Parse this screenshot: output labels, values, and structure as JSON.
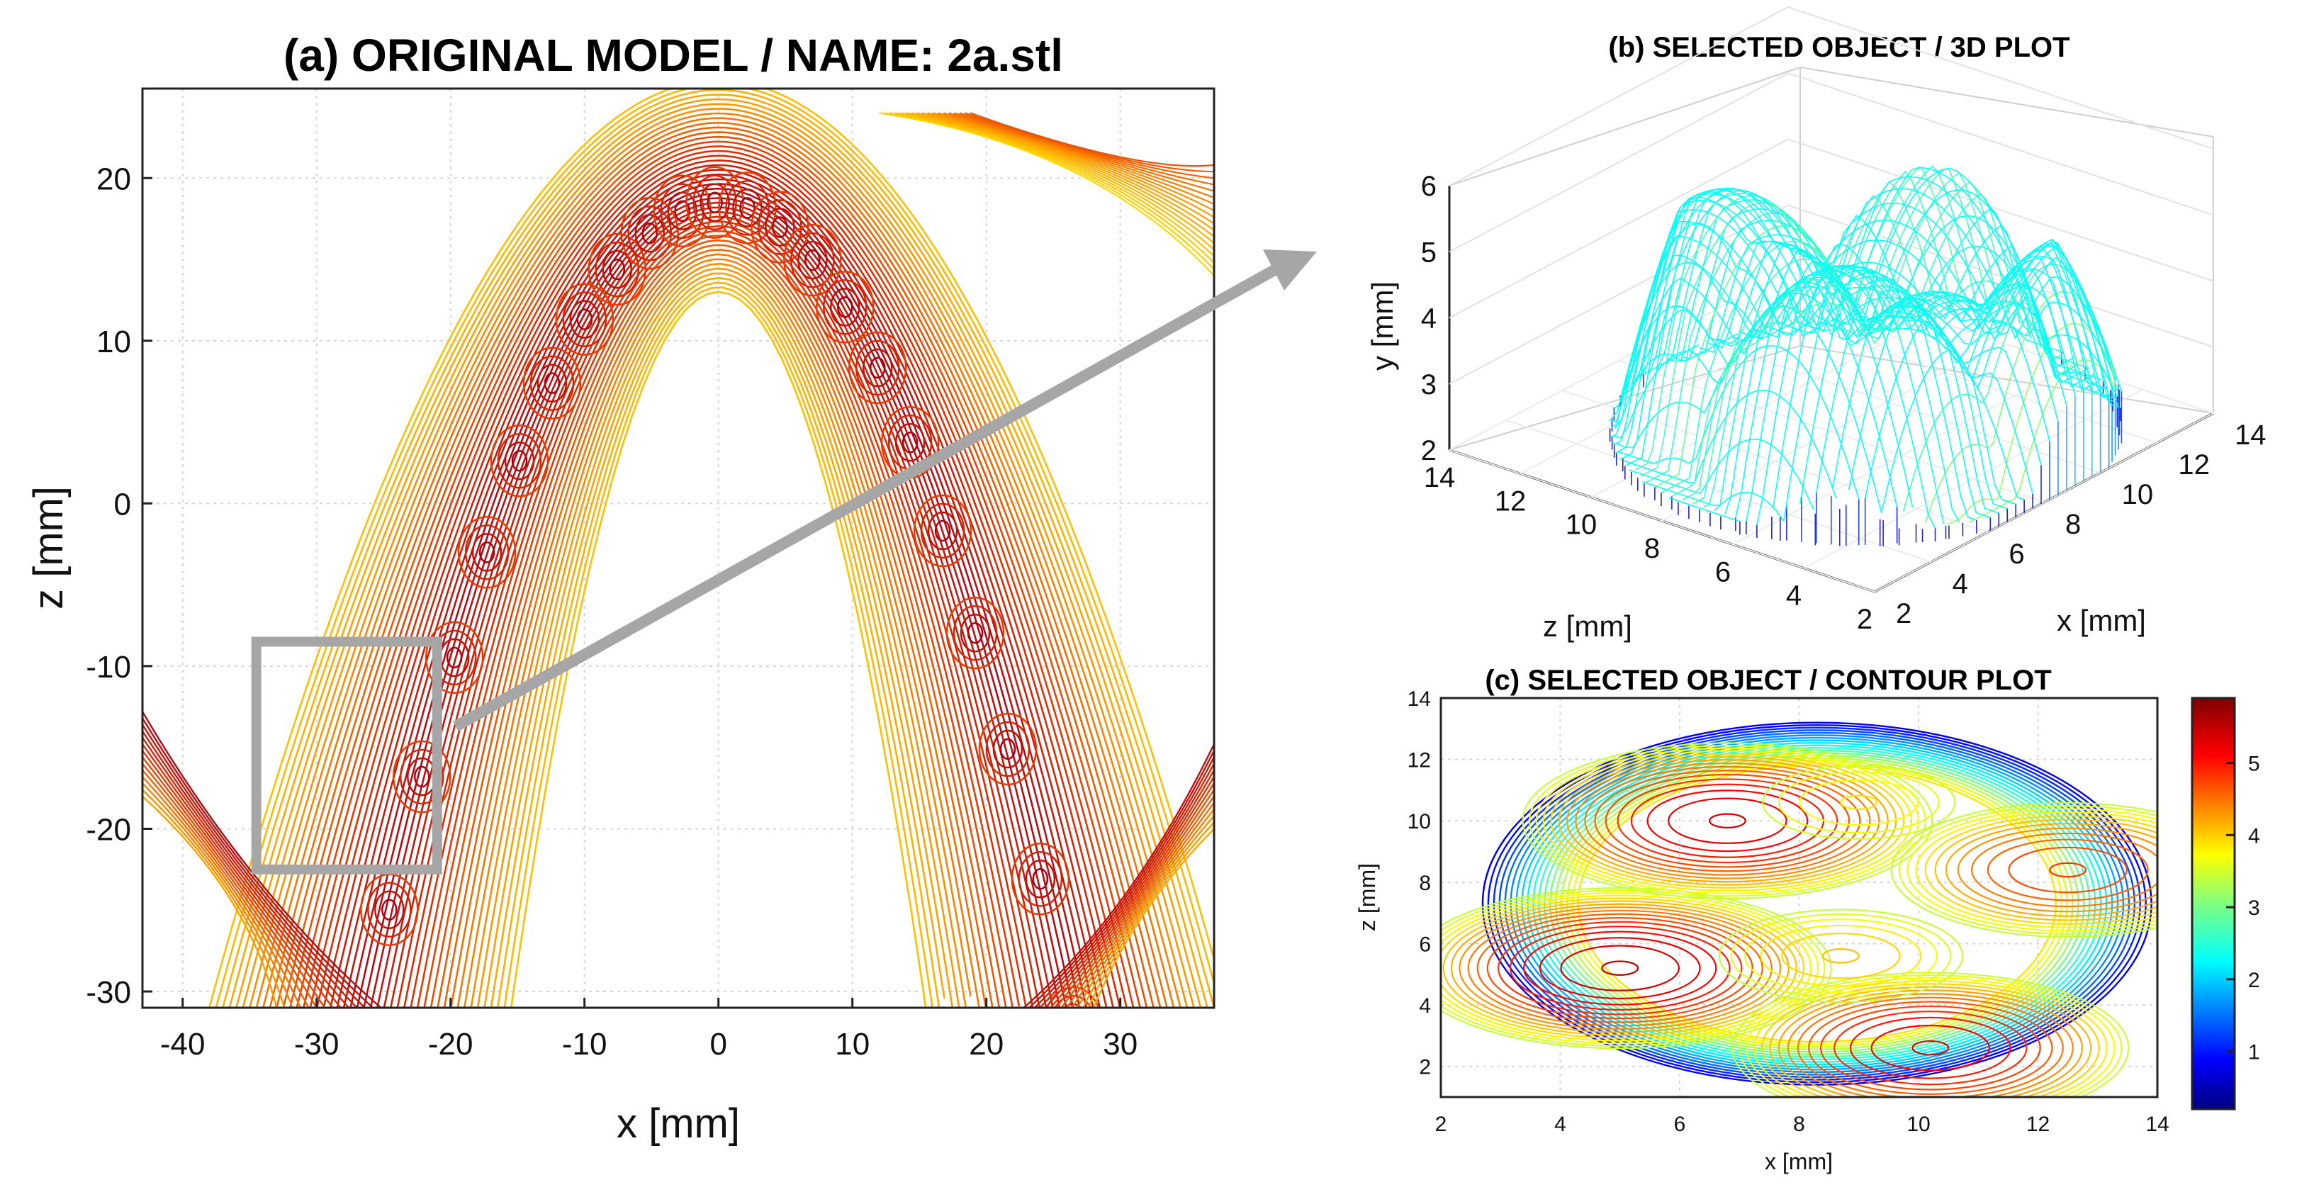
{
  "chart_data": [
    {
      "id": "a",
      "type": "contour",
      "title": "(a) ORIGINAL MODEL / NAME: 2a.stl",
      "xlabel": "x [mm]",
      "ylabel": "z [mm]",
      "xlim": [
        -43,
        37
      ],
      "ylim": [
        -31,
        25.5
      ],
      "xticks": [
        -40,
        -30,
        -20,
        -10,
        0,
        10,
        20,
        30
      ],
      "yticks": [
        -30,
        -20,
        -10,
        0,
        10,
        20
      ],
      "grid": true,
      "selection_box": {
        "x": [
          -34.5,
          -21
        ],
        "z": [
          -22.5,
          -8.5
        ]
      },
      "arch": {
        "outer_half_width": 35,
        "inner_half_width": 17,
        "outer_top": 23,
        "inner_top": 14
      }
    },
    {
      "id": "b",
      "type": "surface3d",
      "title": "(b) SELECTED OBJECT / 3D PLOT",
      "xlabel": "x [mm]",
      "ylabel": "y [mm]",
      "zlabel": "z [mm]",
      "xticks": [
        2,
        4,
        6,
        8,
        10,
        12,
        14
      ],
      "yticks": [
        2,
        3,
        4,
        5,
        6
      ],
      "zticks": [
        14,
        12,
        10,
        8,
        6,
        4,
        2
      ],
      "zlim": [
        2,
        6
      ]
    },
    {
      "id": "c",
      "type": "contour",
      "title": "(c) SELECTED OBJECT / CONTOUR PLOT",
      "xlabel": "x [mm]",
      "ylabel": "z [mm]",
      "xlim": [
        2,
        14
      ],
      "ylim": [
        1,
        14
      ],
      "xticks": [
        2,
        4,
        6,
        8,
        10,
        12,
        14
      ],
      "yticks": [
        2,
        4,
        6,
        8,
        10,
        12,
        14
      ],
      "colorbar_ticks": [
        1,
        2,
        3,
        4,
        5
      ],
      "colorbar_range": [
        0.2,
        5.9
      ],
      "peaks": [
        {
          "x": 5.0,
          "z": 5.2,
          "height": 5.6
        },
        {
          "x": 6.8,
          "z": 10.0,
          "height": 5.5
        },
        {
          "x": 10.2,
          "z": 2.6,
          "height": 5.4
        },
        {
          "x": 12.5,
          "z": 8.4,
          "height": 5.0
        },
        {
          "x": 8.7,
          "z": 5.6,
          "height": 4.3
        },
        {
          "x": 9.0,
          "z": 10.6,
          "height": 4.1
        }
      ]
    }
  ]
}
